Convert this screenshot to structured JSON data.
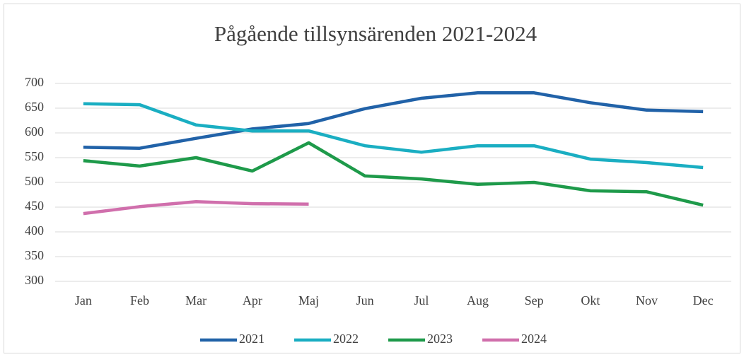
{
  "chart_data": {
    "type": "line",
    "title": "Pågående tillsynsärenden 2021-2024",
    "categories": [
      "Jan",
      "Feb",
      "Mar",
      "Apr",
      "Maj",
      "Jun",
      "Jul",
      "Aug",
      "Sep",
      "Okt",
      "Nov",
      "Dec"
    ],
    "series": [
      {
        "name": "2021",
        "color": "#2162a8",
        "values": [
          571,
          569,
          589,
          608,
          619,
          649,
          670,
          681,
          681,
          661,
          646,
          643
        ]
      },
      {
        "name": "2022",
        "color": "#1aaec2",
        "values": [
          659,
          657,
          616,
          604,
          604,
          574,
          561,
          574,
          574,
          547,
          540,
          530
        ]
      },
      {
        "name": "2023",
        "color": "#1e9a4a",
        "values": [
          544,
          533,
          550,
          523,
          580,
          513,
          507,
          496,
          500,
          483,
          481,
          454
        ]
      },
      {
        "name": "2024",
        "color": "#d06fac",
        "values": [
          437,
          451,
          461,
          457,
          456,
          null,
          null,
          null,
          null,
          null,
          null,
          null
        ]
      }
    ],
    "ylim": [
      300,
      700
    ],
    "yticks": [
      300,
      350,
      400,
      450,
      500,
      550,
      600,
      650,
      700
    ],
    "grid": true,
    "legend": "bottom"
  }
}
